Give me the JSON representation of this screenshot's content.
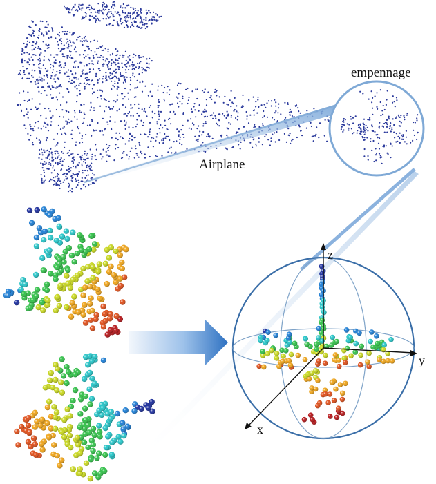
{
  "labels": {
    "airplane": "Airplane",
    "empennage": "empennage",
    "axis_z": "z",
    "axis_y": "y",
    "axis_x": "x"
  },
  "colors": {
    "point_cloud": "#2b3a9c",
    "zoom_ring": "#7fa9d6",
    "sphere": "#3a6ea8",
    "arrow_dark": "#3a78c4",
    "arrow_light": "#e6eef8",
    "heat": [
      "#1d2f9e",
      "#1e7fd6",
      "#27c6c9",
      "#33c24a",
      "#c9d81f",
      "#f0a51a",
      "#e0501b",
      "#b8171a"
    ]
  },
  "icons": {
    "airplane_cloud": "airplane-point-cloud",
    "zoom_lens": "magnifier-circle",
    "transform_arrow": "right-arrow-icon",
    "sphere": "unit-sphere"
  }
}
